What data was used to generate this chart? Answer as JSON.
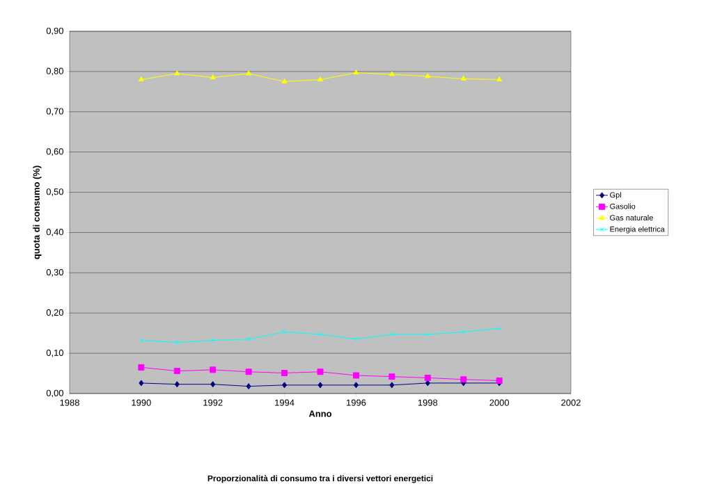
{
  "chart_data": {
    "type": "line",
    "title": "Proporzionalità di consumo tra i diversi vettori energetici",
    "xlabel": "Anno",
    "ylabel": "quota di consumo (%)",
    "x": [
      1990,
      1991,
      1992,
      1993,
      1994,
      1995,
      1996,
      1997,
      1998,
      1999,
      2000
    ],
    "series": [
      {
        "name": "Gpl",
        "color": "#000080",
        "marker": "diamond",
        "values": [
          0.026,
          0.023,
          0.023,
          0.018,
          0.021,
          0.021,
          0.021,
          0.021,
          0.026,
          0.026,
          0.026
        ]
      },
      {
        "name": "Gasolio",
        "color": "#ff00ff",
        "marker": "square",
        "values": [
          0.065,
          0.056,
          0.059,
          0.054,
          0.051,
          0.054,
          0.045,
          0.042,
          0.039,
          0.035,
          0.032
        ]
      },
      {
        "name": "Gas naturale",
        "color": "#ffff00",
        "marker": "triangle",
        "values": [
          0.78,
          0.795,
          0.785,
          0.795,
          0.775,
          0.78,
          0.797,
          0.793,
          0.788,
          0.782,
          0.78
        ]
      },
      {
        "name": "Energia elettrica",
        "color": "#00ffff",
        "marker": "cross",
        "values": [
          0.132,
          0.127,
          0.132,
          0.135,
          0.153,
          0.147,
          0.135,
          0.147,
          0.147,
          0.153,
          0.162
        ]
      }
    ],
    "xlim": [
      1988,
      2002
    ],
    "xticks": [
      1988,
      1990,
      1992,
      1994,
      1996,
      1998,
      2000,
      2002
    ],
    "ylim": [
      0,
      0.9
    ],
    "yticks": [
      {
        "value": 0,
        "label": "0,00"
      },
      {
        "value": 0.1,
        "label": "0,10"
      },
      {
        "value": 0.2,
        "label": "0,20"
      },
      {
        "value": 0.3,
        "label": "0,30"
      },
      {
        "value": 0.4,
        "label": "0,40"
      },
      {
        "value": 0.5,
        "label": "0,50"
      },
      {
        "value": 0.6,
        "label": "0,60"
      },
      {
        "value": 0.7,
        "label": "0,70"
      },
      {
        "value": 0.8,
        "label": "0,80"
      },
      {
        "value": 0.9,
        "label": "0,90"
      }
    ],
    "grid": "y",
    "legend": "right",
    "line_style": "solid"
  }
}
